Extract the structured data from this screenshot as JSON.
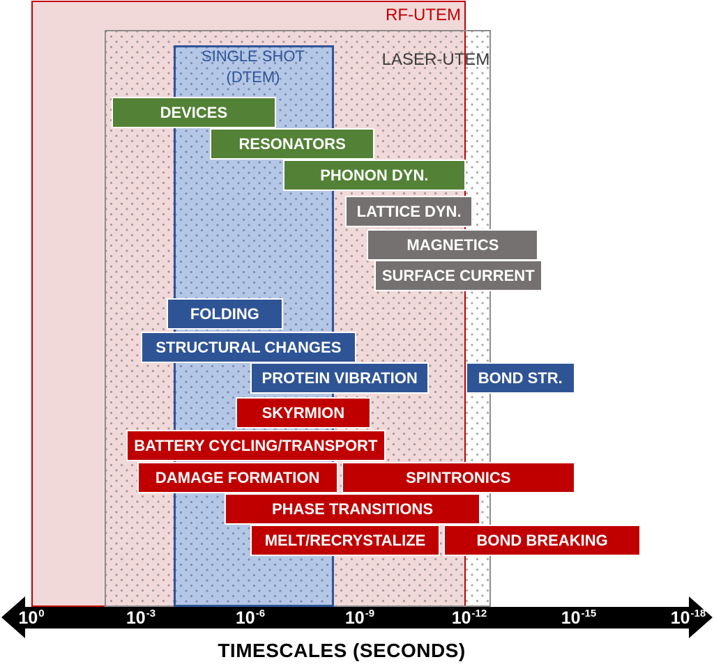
{
  "colors": {
    "green": "#538135",
    "gray": "#767171",
    "blue": "#2f5496",
    "red": "#c00000",
    "rf_fill": "#f2d9d9",
    "rf_border": "#c00000",
    "laser_border": "#8c8c8c",
    "dtem_fill": "#b5c7e6",
    "dtem_border": "#2f5496",
    "axis": "#000000",
    "axis_text": "#ffffff"
  },
  "chart_data": {
    "type": "bar",
    "variant": "horizontal-interval-gantt",
    "axis": {
      "title": "TIMESCALES (SECONDS)",
      "scale": "log10",
      "unit": "seconds",
      "tick_exponents": [
        0,
        -3,
        -6,
        -9,
        -12,
        -15,
        -18
      ],
      "range_exponents": [
        0,
        -18
      ],
      "tick_base": "10"
    },
    "technique_windows": {
      "rf": {
        "label": "RF-UTEM",
        "start_exp": 0.0,
        "end_exp": -11.9
      },
      "laser": {
        "label": "LASER-UTEM",
        "start_exp": -2.0,
        "end_exp": -12.6
      },
      "dtem": {
        "label_line1": "SINGLE SHOT",
        "label_line2": "(DTEM)",
        "start_exp": -3.9,
        "end_exp": -8.3
      }
    },
    "bars": [
      {
        "label": "DEVICES",
        "group": "green",
        "row": 0,
        "start_exp": -2.2,
        "end_exp": -6.7
      },
      {
        "label": "RESONATORS",
        "group": "green",
        "row": 1,
        "start_exp": -4.9,
        "end_exp": -9.4
      },
      {
        "label": "PHONON DYN.",
        "group": "green",
        "row": 2,
        "start_exp": -6.9,
        "end_exp": -11.9
      },
      {
        "label": "LATTICE DYN.",
        "group": "gray",
        "row": 3,
        "start_exp": -8.6,
        "end_exp": -12.1
      },
      {
        "label": "MAGNETICS",
        "group": "gray",
        "row": 4,
        "start_exp": -9.2,
        "end_exp": -13.9
      },
      {
        "label": "SURFACE CURRENT",
        "group": "gray",
        "row": 5,
        "start_exp": -9.4,
        "end_exp": -14.0
      },
      {
        "label": "FOLDING",
        "group": "blue",
        "row": 6,
        "start_exp": -3.7,
        "end_exp": -6.9
      },
      {
        "label": "STRUCTURAL CHANGES",
        "group": "blue",
        "row": 7,
        "start_exp": -3.0,
        "end_exp": -8.9
      },
      {
        "label": "PROTEIN VIBRATION",
        "group": "blue",
        "row": 8,
        "start_exp": -6.0,
        "end_exp": -10.9
      },
      {
        "label": "BOND STR.",
        "group": "blue",
        "row": 8,
        "start_exp": -11.9,
        "end_exp": -14.9
      },
      {
        "label": "SKYRMION",
        "group": "red",
        "row": 9,
        "start_exp": -5.6,
        "end_exp": -9.3
      },
      {
        "label": "BATTERY CYCLING/TRANSPORT",
        "group": "red",
        "row": 10,
        "start_exp": -2.6,
        "end_exp": -9.7
      },
      {
        "label": "DAMAGE FORMATION",
        "group": "red",
        "row": 11,
        "start_exp": -2.9,
        "end_exp": -8.4
      },
      {
        "label": "SPINTRONICS",
        "group": "red",
        "row": 11,
        "start_exp": -8.5,
        "end_exp": -14.9
      },
      {
        "label": "PHASE TRANSITIONS",
        "group": "red",
        "row": 12,
        "start_exp": -5.3,
        "end_exp": -12.3
      },
      {
        "label": "MELT/RECRYSTALIZE",
        "group": "red",
        "row": 13,
        "start_exp": -6.0,
        "end_exp": -11.2
      },
      {
        "label": "BOND BREAKING",
        "group": "red",
        "row": 13,
        "start_exp": -11.3,
        "end_exp": -16.7
      }
    ]
  }
}
